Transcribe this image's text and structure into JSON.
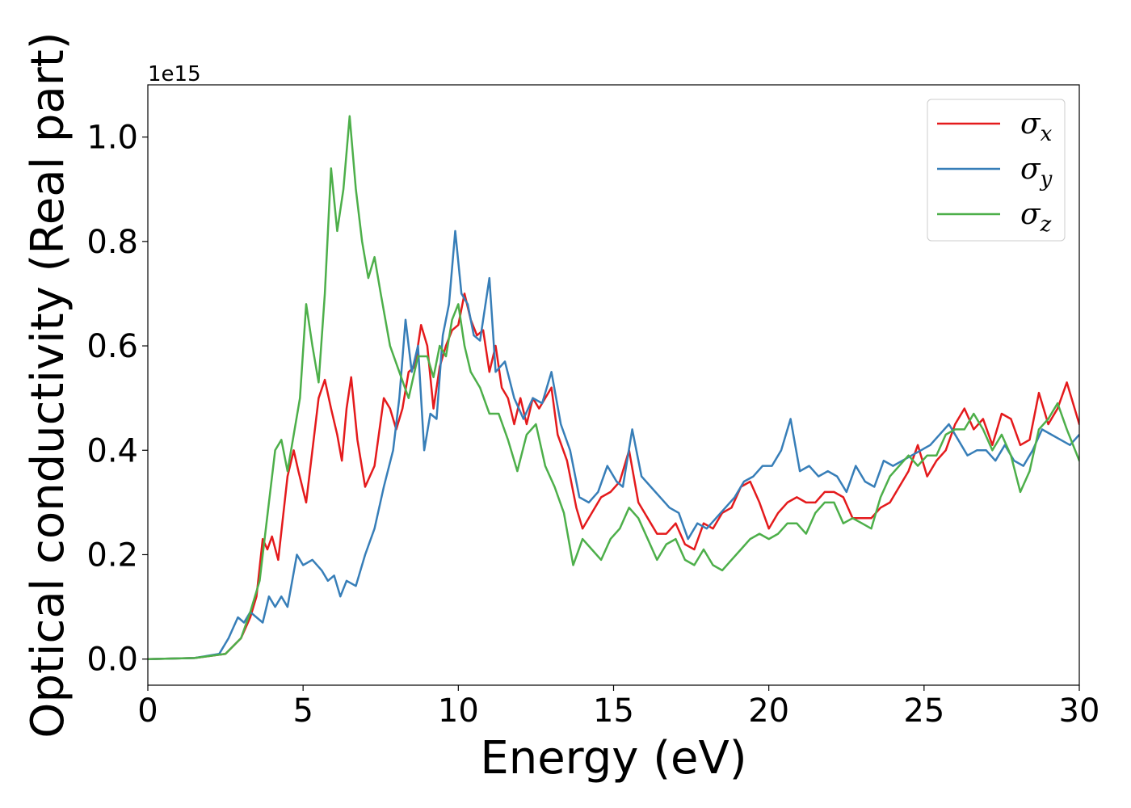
{
  "chart_data": {
    "type": "line",
    "xlabel": "Energy (eV)",
    "ylabel": "Optical conductivity (Real part)",
    "y_offset_text": "1e15",
    "xlim": [
      0,
      30
    ],
    "ylim": [
      -0.05,
      1.1
    ],
    "y_scale_factor": 1000000000000000.0,
    "x_ticks": [
      0,
      5,
      10,
      15,
      20,
      25,
      30
    ],
    "x_tick_labels": [
      "0",
      "5",
      "10",
      "15",
      "20",
      "25",
      "30"
    ],
    "y_ticks": [
      0.0,
      0.2,
      0.4,
      0.6,
      0.8,
      1.0
    ],
    "y_tick_labels": [
      "0.0",
      "0.2",
      "0.4",
      "0.6",
      "0.8",
      "1.0"
    ],
    "grid": false,
    "legend_position": "top-right",
    "series": [
      {
        "name": "σ",
        "subscript": "x",
        "color": "#e41a1c",
        "points": [
          [
            0,
            0
          ],
          [
            1.5,
            0.002
          ],
          [
            2.5,
            0.01
          ],
          [
            3.0,
            0.04
          ],
          [
            3.3,
            0.08
          ],
          [
            3.5,
            0.12
          ],
          [
            3.7,
            0.23
          ],
          [
            3.85,
            0.21
          ],
          [
            4.0,
            0.235
          ],
          [
            4.2,
            0.19
          ],
          [
            4.5,
            0.35
          ],
          [
            4.7,
            0.4
          ],
          [
            4.85,
            0.36
          ],
          [
            5.1,
            0.3
          ],
          [
            5.3,
            0.4
          ],
          [
            5.5,
            0.5
          ],
          [
            5.7,
            0.535
          ],
          [
            5.9,
            0.48
          ],
          [
            6.1,
            0.43
          ],
          [
            6.25,
            0.38
          ],
          [
            6.4,
            0.48
          ],
          [
            6.55,
            0.54
          ],
          [
            6.75,
            0.42
          ],
          [
            7.0,
            0.33
          ],
          [
            7.3,
            0.37
          ],
          [
            7.6,
            0.5
          ],
          [
            7.8,
            0.48
          ],
          [
            8.0,
            0.44
          ],
          [
            8.2,
            0.48
          ],
          [
            8.4,
            0.55
          ],
          [
            8.6,
            0.56
          ],
          [
            8.8,
            0.64
          ],
          [
            9.0,
            0.6
          ],
          [
            9.2,
            0.48
          ],
          [
            9.4,
            0.56
          ],
          [
            9.6,
            0.6
          ],
          [
            9.8,
            0.63
          ],
          [
            10.0,
            0.64
          ],
          [
            10.2,
            0.7
          ],
          [
            10.4,
            0.65
          ],
          [
            10.6,
            0.62
          ],
          [
            10.8,
            0.63
          ],
          [
            11.0,
            0.55
          ],
          [
            11.2,
            0.6
          ],
          [
            11.4,
            0.52
          ],
          [
            11.6,
            0.5
          ],
          [
            11.8,
            0.45
          ],
          [
            12.0,
            0.5
          ],
          [
            12.2,
            0.45
          ],
          [
            12.4,
            0.5
          ],
          [
            12.6,
            0.48
          ],
          [
            12.8,
            0.5
          ],
          [
            13.0,
            0.52
          ],
          [
            13.2,
            0.43
          ],
          [
            13.5,
            0.38
          ],
          [
            13.8,
            0.29
          ],
          [
            14.0,
            0.25
          ],
          [
            14.3,
            0.28
          ],
          [
            14.6,
            0.31
          ],
          [
            14.9,
            0.32
          ],
          [
            15.2,
            0.34
          ],
          [
            15.5,
            0.4
          ],
          [
            15.8,
            0.3
          ],
          [
            16.1,
            0.27
          ],
          [
            16.4,
            0.24
          ],
          [
            16.7,
            0.24
          ],
          [
            17.0,
            0.26
          ],
          [
            17.3,
            0.22
          ],
          [
            17.6,
            0.21
          ],
          [
            17.9,
            0.26
          ],
          [
            18.2,
            0.25
          ],
          [
            18.5,
            0.28
          ],
          [
            18.8,
            0.29
          ],
          [
            19.1,
            0.33
          ],
          [
            19.4,
            0.34
          ],
          [
            19.7,
            0.3
          ],
          [
            20.0,
            0.25
          ],
          [
            20.3,
            0.28
          ],
          [
            20.6,
            0.3
          ],
          [
            20.9,
            0.31
          ],
          [
            21.2,
            0.3
          ],
          [
            21.5,
            0.3
          ],
          [
            21.8,
            0.32
          ],
          [
            22.1,
            0.32
          ],
          [
            22.4,
            0.31
          ],
          [
            22.7,
            0.27
          ],
          [
            23.0,
            0.27
          ],
          [
            23.3,
            0.27
          ],
          [
            23.6,
            0.29
          ],
          [
            23.9,
            0.3
          ],
          [
            24.2,
            0.33
          ],
          [
            24.5,
            0.36
          ],
          [
            24.8,
            0.41
          ],
          [
            25.1,
            0.35
          ],
          [
            25.4,
            0.38
          ],
          [
            25.7,
            0.4
          ],
          [
            26.0,
            0.45
          ],
          [
            26.3,
            0.48
          ],
          [
            26.6,
            0.44
          ],
          [
            26.9,
            0.46
          ],
          [
            27.2,
            0.41
          ],
          [
            27.5,
            0.47
          ],
          [
            27.8,
            0.46
          ],
          [
            28.1,
            0.41
          ],
          [
            28.4,
            0.42
          ],
          [
            28.7,
            0.51
          ],
          [
            29.0,
            0.45
          ],
          [
            29.3,
            0.48
          ],
          [
            29.6,
            0.53
          ],
          [
            30.0,
            0.45
          ]
        ]
      },
      {
        "name": "σ",
        "subscript": "y",
        "color": "#377eb8",
        "points": [
          [
            0,
            0
          ],
          [
            1.5,
            0.002
          ],
          [
            2.3,
            0.01
          ],
          [
            2.6,
            0.04
          ],
          [
            2.9,
            0.08
          ],
          [
            3.1,
            0.07
          ],
          [
            3.3,
            0.09
          ],
          [
            3.5,
            0.08
          ],
          [
            3.7,
            0.07
          ],
          [
            3.9,
            0.12
          ],
          [
            4.1,
            0.1
          ],
          [
            4.3,
            0.12
          ],
          [
            4.5,
            0.1
          ],
          [
            4.8,
            0.2
          ],
          [
            5.0,
            0.18
          ],
          [
            5.3,
            0.19
          ],
          [
            5.6,
            0.17
          ],
          [
            5.8,
            0.15
          ],
          [
            6.0,
            0.16
          ],
          [
            6.2,
            0.12
          ],
          [
            6.4,
            0.15
          ],
          [
            6.7,
            0.14
          ],
          [
            7.0,
            0.2
          ],
          [
            7.3,
            0.25
          ],
          [
            7.6,
            0.33
          ],
          [
            7.9,
            0.4
          ],
          [
            8.1,
            0.5
          ],
          [
            8.3,
            0.65
          ],
          [
            8.5,
            0.55
          ],
          [
            8.7,
            0.6
          ],
          [
            8.9,
            0.4
          ],
          [
            9.1,
            0.47
          ],
          [
            9.3,
            0.46
          ],
          [
            9.5,
            0.62
          ],
          [
            9.7,
            0.68
          ],
          [
            9.9,
            0.82
          ],
          [
            10.1,
            0.7
          ],
          [
            10.3,
            0.68
          ],
          [
            10.5,
            0.62
          ],
          [
            10.7,
            0.61
          ],
          [
            11.0,
            0.73
          ],
          [
            11.2,
            0.55
          ],
          [
            11.5,
            0.57
          ],
          [
            11.8,
            0.5
          ],
          [
            12.1,
            0.46
          ],
          [
            12.4,
            0.5
          ],
          [
            12.7,
            0.49
          ],
          [
            13.0,
            0.55
          ],
          [
            13.3,
            0.45
          ],
          [
            13.6,
            0.4
          ],
          [
            13.9,
            0.31
          ],
          [
            14.2,
            0.3
          ],
          [
            14.5,
            0.32
          ],
          [
            14.8,
            0.37
          ],
          [
            15.1,
            0.34
          ],
          [
            15.3,
            0.33
          ],
          [
            15.6,
            0.44
          ],
          [
            15.9,
            0.35
          ],
          [
            16.2,
            0.33
          ],
          [
            16.5,
            0.31
          ],
          [
            16.8,
            0.29
          ],
          [
            17.1,
            0.28
          ],
          [
            17.4,
            0.23
          ],
          [
            17.7,
            0.26
          ],
          [
            18.0,
            0.25
          ],
          [
            18.3,
            0.27
          ],
          [
            18.6,
            0.29
          ],
          [
            18.9,
            0.31
          ],
          [
            19.2,
            0.34
          ],
          [
            19.5,
            0.35
          ],
          [
            19.8,
            0.37
          ],
          [
            20.1,
            0.37
          ],
          [
            20.4,
            0.4
          ],
          [
            20.7,
            0.46
          ],
          [
            21.0,
            0.36
          ],
          [
            21.3,
            0.37
          ],
          [
            21.6,
            0.35
          ],
          [
            21.9,
            0.36
          ],
          [
            22.2,
            0.35
          ],
          [
            22.5,
            0.32
          ],
          [
            22.8,
            0.37
          ],
          [
            23.1,
            0.34
          ],
          [
            23.4,
            0.33
          ],
          [
            23.7,
            0.38
          ],
          [
            24.0,
            0.37
          ],
          [
            24.3,
            0.38
          ],
          [
            24.6,
            0.39
          ],
          [
            24.9,
            0.4
          ],
          [
            25.2,
            0.41
          ],
          [
            25.5,
            0.43
          ],
          [
            25.8,
            0.45
          ],
          [
            26.1,
            0.42
          ],
          [
            26.4,
            0.39
          ],
          [
            26.7,
            0.4
          ],
          [
            27.0,
            0.4
          ],
          [
            27.3,
            0.38
          ],
          [
            27.6,
            0.41
          ],
          [
            27.9,
            0.38
          ],
          [
            28.2,
            0.37
          ],
          [
            28.5,
            0.4
          ],
          [
            28.8,
            0.44
          ],
          [
            29.1,
            0.43
          ],
          [
            29.4,
            0.42
          ],
          [
            29.7,
            0.41
          ],
          [
            30.0,
            0.43
          ]
        ]
      },
      {
        "name": "σ",
        "subscript": "z",
        "color": "#4daf4a",
        "points": [
          [
            0,
            0
          ],
          [
            1.5,
            0.002
          ],
          [
            2.5,
            0.01
          ],
          [
            3.0,
            0.04
          ],
          [
            3.3,
            0.09
          ],
          [
            3.6,
            0.15
          ],
          [
            3.9,
            0.3
          ],
          [
            4.1,
            0.4
          ],
          [
            4.3,
            0.42
          ],
          [
            4.5,
            0.36
          ],
          [
            4.7,
            0.43
          ],
          [
            4.9,
            0.5
          ],
          [
            5.1,
            0.68
          ],
          [
            5.3,
            0.6
          ],
          [
            5.5,
            0.53
          ],
          [
            5.7,
            0.7
          ],
          [
            5.9,
            0.94
          ],
          [
            6.1,
            0.82
          ],
          [
            6.3,
            0.9
          ],
          [
            6.5,
            1.04
          ],
          [
            6.7,
            0.9
          ],
          [
            6.9,
            0.8
          ],
          [
            7.1,
            0.73
          ],
          [
            7.3,
            0.77
          ],
          [
            7.5,
            0.7
          ],
          [
            7.8,
            0.6
          ],
          [
            8.1,
            0.55
          ],
          [
            8.4,
            0.5
          ],
          [
            8.7,
            0.58
          ],
          [
            9.0,
            0.58
          ],
          [
            9.2,
            0.54
          ],
          [
            9.4,
            0.6
          ],
          [
            9.6,
            0.58
          ],
          [
            9.8,
            0.65
          ],
          [
            10.0,
            0.68
          ],
          [
            10.2,
            0.6
          ],
          [
            10.4,
            0.55
          ],
          [
            10.7,
            0.52
          ],
          [
            11.0,
            0.47
          ],
          [
            11.3,
            0.47
          ],
          [
            11.6,
            0.42
          ],
          [
            11.9,
            0.36
          ],
          [
            12.2,
            0.43
          ],
          [
            12.5,
            0.45
          ],
          [
            12.8,
            0.37
          ],
          [
            13.1,
            0.33
          ],
          [
            13.4,
            0.28
          ],
          [
            13.7,
            0.18
          ],
          [
            14.0,
            0.23
          ],
          [
            14.3,
            0.21
          ],
          [
            14.6,
            0.19
          ],
          [
            14.9,
            0.23
          ],
          [
            15.2,
            0.25
          ],
          [
            15.5,
            0.29
          ],
          [
            15.8,
            0.27
          ],
          [
            16.1,
            0.23
          ],
          [
            16.4,
            0.19
          ],
          [
            16.7,
            0.22
          ],
          [
            17.0,
            0.23
          ],
          [
            17.3,
            0.19
          ],
          [
            17.6,
            0.18
          ],
          [
            17.9,
            0.21
          ],
          [
            18.2,
            0.18
          ],
          [
            18.5,
            0.17
          ],
          [
            18.8,
            0.19
          ],
          [
            19.1,
            0.21
          ],
          [
            19.4,
            0.23
          ],
          [
            19.7,
            0.24
          ],
          [
            20.0,
            0.23
          ],
          [
            20.3,
            0.24
          ],
          [
            20.6,
            0.26
          ],
          [
            20.9,
            0.26
          ],
          [
            21.2,
            0.24
          ],
          [
            21.5,
            0.28
          ],
          [
            21.8,
            0.3
          ],
          [
            22.1,
            0.3
          ],
          [
            22.4,
            0.26
          ],
          [
            22.7,
            0.27
          ],
          [
            23.0,
            0.26
          ],
          [
            23.3,
            0.25
          ],
          [
            23.6,
            0.31
          ],
          [
            23.9,
            0.35
          ],
          [
            24.2,
            0.37
          ],
          [
            24.5,
            0.39
          ],
          [
            24.8,
            0.37
          ],
          [
            25.1,
            0.39
          ],
          [
            25.4,
            0.39
          ],
          [
            25.7,
            0.43
          ],
          [
            26.0,
            0.44
          ],
          [
            26.3,
            0.44
          ],
          [
            26.6,
            0.47
          ],
          [
            26.9,
            0.44
          ],
          [
            27.2,
            0.4
          ],
          [
            27.5,
            0.43
          ],
          [
            27.8,
            0.39
          ],
          [
            28.1,
            0.32
          ],
          [
            28.4,
            0.36
          ],
          [
            28.7,
            0.44
          ],
          [
            29.0,
            0.46
          ],
          [
            29.3,
            0.49
          ],
          [
            29.6,
            0.44
          ],
          [
            30.0,
            0.38
          ]
        ]
      }
    ]
  }
}
